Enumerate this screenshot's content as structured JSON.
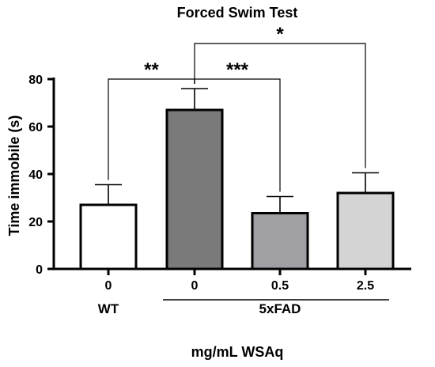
{
  "chart_data": {
    "type": "bar",
    "title": "Forced Swim Test",
    "ylabel": "Time immobile (s)",
    "xlabel": "mg/mL WSAq",
    "ylim": [
      0,
      80
    ],
    "yticks": [
      0,
      20,
      40,
      60,
      80
    ],
    "categories": [
      "0",
      "0",
      "0.5",
      "2.5"
    ],
    "values": [
      27,
      67,
      23.5,
      32
    ],
    "errors": [
      8.5,
      9,
      7,
      8.5
    ],
    "bar_colors": [
      "#ffffff",
      "#7a7a7a",
      "#a0a0a4",
      "#d4d4d4"
    ],
    "groups": [
      {
        "label": "WT",
        "bars": [
          0
        ]
      },
      {
        "label": "5xFAD",
        "bars": [
          1,
          2,
          3
        ]
      }
    ],
    "significance": [
      {
        "from": 0,
        "to": 1,
        "label": "**",
        "y": 80
      },
      {
        "from": 1,
        "to": 2,
        "label": "***",
        "y": 80
      },
      {
        "from": 1,
        "to": 3,
        "label": "*",
        "y": 95
      }
    ]
  }
}
